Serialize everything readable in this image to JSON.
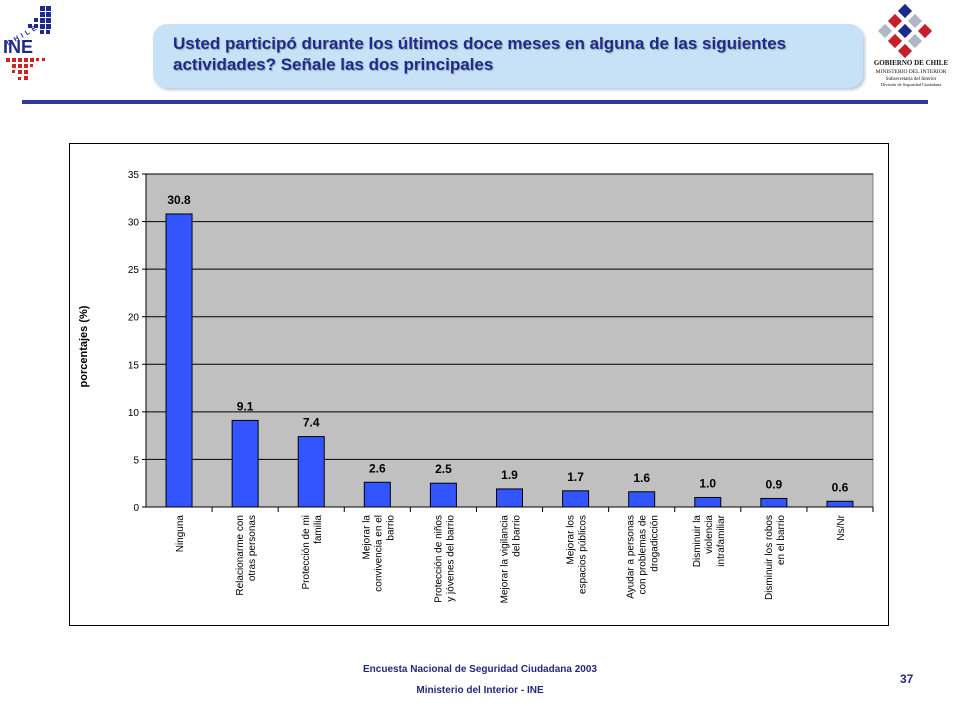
{
  "header": {
    "title": "Usted participó durante los últimos doce meses en alguna de las siguientes actividades? Señale las dos principales",
    "ine_logo_top_text": "CHILE",
    "ine_logo_text": "INE",
    "gov_logo_lines": [
      "GOBIERNO DE CHILE",
      "MINISTERIO DEL INTERIOR",
      "Subsecretaría del Interior",
      "División de Seguridad Ciudadana"
    ]
  },
  "footer": {
    "line1": "Encuesta Nacional de Seguridad Ciudadana 2003",
    "line2": "Ministerio del Interior - INE",
    "page_number": "37"
  },
  "colors": {
    "bar": "#3355ff",
    "plot_bg": "#c0c0c0",
    "title_text": "#1f2a8c",
    "rule": "#2d39a0"
  },
  "chart_data": {
    "type": "bar",
    "title": "",
    "xlabel": "",
    "ylabel": "porcentajes (%)",
    "ylim": [
      0,
      35
    ],
    "yticks": [
      0,
      5,
      10,
      15,
      20,
      25,
      30,
      35
    ],
    "grid": true,
    "categories": [
      [
        "Ninguna"
      ],
      [
        "Relacionarme con",
        "otras personas"
      ],
      [
        "Protección de mi",
        "familia"
      ],
      [
        "Mejorar la",
        "convivencia en el",
        "barrio"
      ],
      [
        "Protección de niños",
        "y jóvenes del barrio"
      ],
      [
        "Mejorar la vigilancia",
        "del barrio"
      ],
      [
        "Mejorar los",
        "espacios públicos"
      ],
      [
        "Ayudar a personas",
        "con problemas de",
        "drogadicción"
      ],
      [
        "Disminuir la",
        "violencia",
        "intrafamiliar"
      ],
      [
        "Disminuir los robos",
        "en el barrio"
      ],
      [
        "Ns/Nr"
      ]
    ],
    "values": [
      30.8,
      9.1,
      7.4,
      2.6,
      2.5,
      1.9,
      1.7,
      1.6,
      1.0,
      0.9,
      0.6
    ],
    "value_labels": [
      "30.8",
      "9.1",
      "7.4",
      "2.6",
      "2.5",
      "1.9",
      "1.7",
      "1.6",
      "1.0",
      "0.9",
      "0.6"
    ]
  }
}
